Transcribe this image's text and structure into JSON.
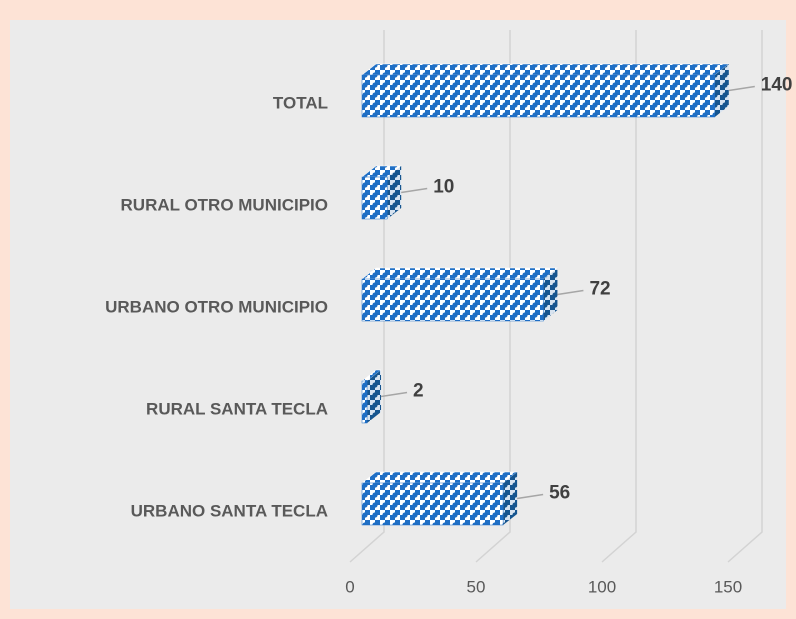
{
  "chart_data": {
    "type": "bar",
    "orientation": "horizontal",
    "categories": [
      "TOTAL",
      "RURAL OTRO MUNICIPIO",
      "URBANO OTRO MUNICIPIO",
      "RURAL SANTA TECLA",
      "URBANO SANTA TECLA"
    ],
    "values": [
      140,
      10,
      72,
      2,
      56
    ],
    "color": "#1f6fc5",
    "xlim": [
      0,
      150
    ],
    "xticks": [
      0,
      50,
      100,
      150
    ],
    "grid": true
  }
}
